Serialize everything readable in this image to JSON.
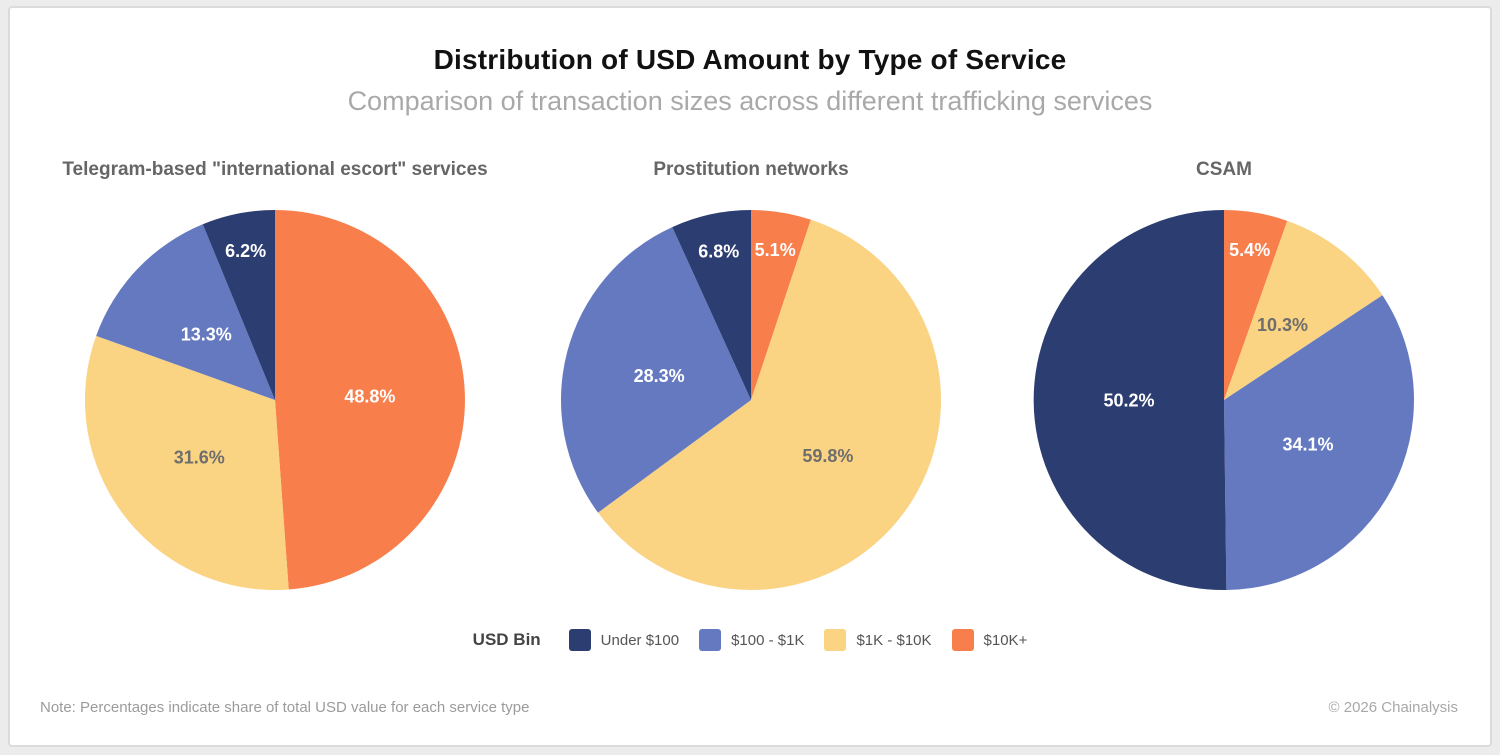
{
  "header": {
    "title": "Distribution of USD Amount by Type of Service",
    "subtitle": "Comparison of transaction sizes across different trafficking services"
  },
  "legend": {
    "title": "USD Bin",
    "items": [
      {
        "label": "Under $100",
        "color": "#2C3D72"
      },
      {
        "label": "$100 - $1K",
        "color": "#6579C1"
      },
      {
        "label": "$1K - $10K",
        "color": "#FAD383"
      },
      {
        "label": "$10K+",
        "color": "#F87E4B"
      }
    ]
  },
  "footer": {
    "note": "Note: Percentages indicate share of total USD value for each service type",
    "copyright": "© 2026 Chainalysis"
  },
  "colors": {
    "navy": "#2C3D72",
    "blue": "#6579C1",
    "yellow": "#FAD383",
    "orange": "#F87E4B",
    "title_text": "#111111",
    "subtitle_text": "#A9A9A9",
    "pie_title_text": "#666666",
    "label_on_dark": "#FFFFFF",
    "label_on_yellow": "#6E6E6E",
    "card_border": "#DBDBDB",
    "page_background": "#ECECEC"
  },
  "bin_colors": {
    "Under $100": "#2C3D72",
    "$100 - $1K": "#6579C1",
    "$1K - $10K": "#FAD383",
    "$10K+": "#F87E4B"
  },
  "chart_data": [
    {
      "type": "pie",
      "title": "Telegram-based \"international escort\" services",
      "start_angle_deg": 0,
      "direction": "clockwise",
      "slices": [
        {
          "bin": "$10K+",
          "pct": 48.8
        },
        {
          "bin": "$1K - $10K",
          "pct": 31.6
        },
        {
          "bin": "$100 - $1K",
          "pct": 13.3
        },
        {
          "bin": "Under $100",
          "pct": 6.2
        }
      ]
    },
    {
      "type": "pie",
      "title": "Prostitution networks",
      "start_angle_deg": 0,
      "direction": "clockwise",
      "slices": [
        {
          "bin": "$10K+",
          "pct": 5.1
        },
        {
          "bin": "$1K - $10K",
          "pct": 59.8
        },
        {
          "bin": "$100 - $1K",
          "pct": 28.3
        },
        {
          "bin": "Under $100",
          "pct": 6.8
        }
      ]
    },
    {
      "type": "pie",
      "title": "CSAM",
      "start_angle_deg": 0,
      "direction": "clockwise",
      "slices": [
        {
          "bin": "$10K+",
          "pct": 5.4
        },
        {
          "bin": "$1K - $10K",
          "pct": 10.3
        },
        {
          "bin": "$100 - $1K",
          "pct": 34.1
        },
        {
          "bin": "Under $100",
          "pct": 50.2
        }
      ]
    }
  ]
}
